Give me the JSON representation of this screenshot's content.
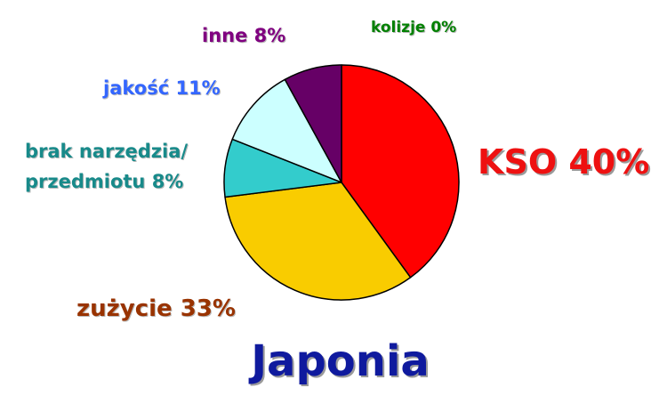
{
  "chart_data": {
    "type": "pie",
    "title": "Japonia",
    "slices": [
      {
        "name": "KSO",
        "value": 40,
        "label": "KSO 40%",
        "color": "#ff0000",
        "text_color": "#ee1111"
      },
      {
        "name": "zużycie",
        "value": 33,
        "label": "zużycie 33%",
        "color": "#f9cc00",
        "text_color": "#993300"
      },
      {
        "name": "brak narzędzia/przedmiotu",
        "value": 8,
        "label_lines": [
          "brak narzędzia/",
          "przedmiotu 8%"
        ],
        "color": "#33cccc",
        "text_color": "#188a8a"
      },
      {
        "name": "jakość",
        "value": 11,
        "label": "jakość 11%",
        "color": "#ccffff",
        "text_color": "#3366ff"
      },
      {
        "name": "inne",
        "value": 8,
        "label": "inne 8%",
        "color": "#660066",
        "text_color": "#800080"
      },
      {
        "name": "kolizje",
        "value": 0,
        "label": "kolizje 0%",
        "color": "#008000",
        "text_color": "#008000"
      }
    ],
    "title_color": "#0f1a9e",
    "start_angle_deg": 0,
    "direction": "clockwise",
    "legend": "none"
  }
}
